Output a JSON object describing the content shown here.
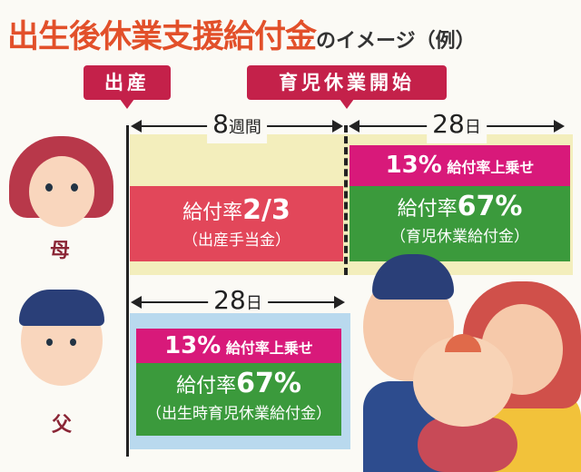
{
  "title": {
    "main": "出生後休業支援給付金",
    "suffix": "のイメージ（例）"
  },
  "markers": {
    "birth": "出産",
    "leave_start": "育児休業開始"
  },
  "mother": {
    "label": "母",
    "period1": {
      "num": "8",
      "unit": "週間",
      "rate_label": "給付率",
      "rate": "2/3",
      "benefit": "（出産手当金）"
    },
    "period2": {
      "num": "28",
      "unit": "日",
      "bonus_pct": "13%",
      "bonus_label": "給付率上乗せ",
      "rate_label": "給付率",
      "rate": "67%",
      "benefit": "（育児休業給付金）"
    }
  },
  "father": {
    "label": "父",
    "period": {
      "num": "28",
      "unit": "日",
      "bonus_pct": "13%",
      "bonus_label": "給付率上乗せ",
      "rate_label": "給付率",
      "rate": "67%",
      "benefit": "（出生時育児休業給付金）"
    }
  },
  "colors": {
    "title": "#e2502a",
    "marker": "#c4214a",
    "bonus": "#d8197a",
    "rate67": "#3b9a3c",
    "maternity": "#e2475a",
    "mother_bg": "#f3eebc",
    "father_bg": "#b9d9ee"
  }
}
